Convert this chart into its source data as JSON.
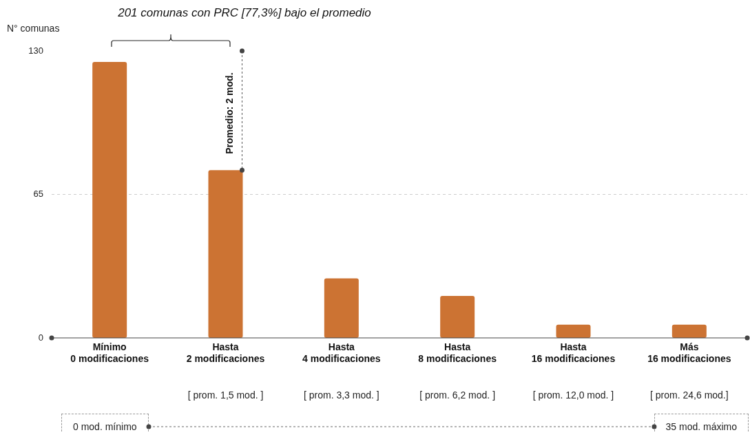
{
  "chart_data": {
    "type": "bar",
    "title": "201 comunas con PRC [77,3%] bajo el promedio",
    "ylabel": "N° comunas",
    "categories": [
      "Mínimo\n0 modificaciones",
      "Hasta\n2 modificaciones",
      "Hasta\n4 modificaciones",
      "Hasta\n8 modificaciones",
      "Hasta\n16 modificaciones",
      "Más\n16 modificaciones"
    ],
    "values": [
      125,
      76,
      27,
      19,
      6,
      6
    ],
    "color": "#cc7333",
    "ylim": [
      0,
      130
    ],
    "yticks": [
      0,
      65,
      130
    ],
    "grid": "y",
    "annotations": [
      "Promedio: 2 mod.",
      "[ prom. 1,5 mod. ]",
      "[ prom. 3,3 mod. ]",
      "[ prom. 6,2 mod. ]",
      "[ prom. 12,0 mod. ]",
      "[ prom. 24,6 mod.]",
      "0 mod. mínimo",
      "35 mod. máximo"
    ]
  }
}
